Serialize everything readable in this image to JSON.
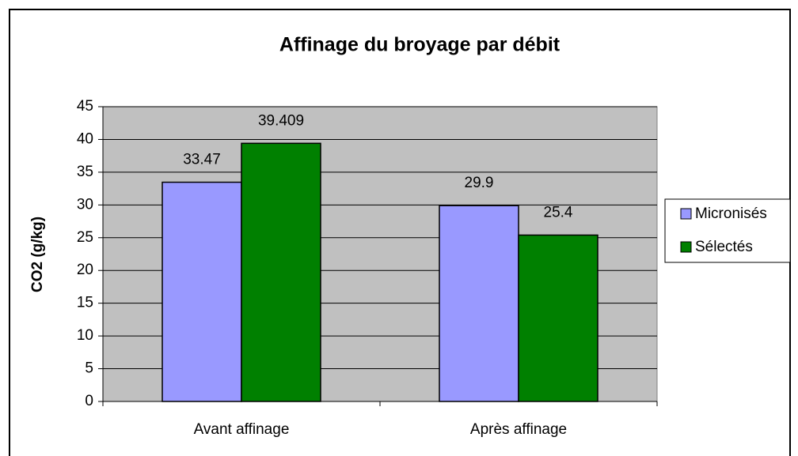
{
  "chart_data": {
    "type": "bar",
    "title": "Affinage du broyage par débit",
    "y_label": "CO2 (g/kg)",
    "categories": [
      "Avant affinage",
      "Après affinage"
    ],
    "series": [
      {
        "name": "Micronisés",
        "color": "#9999ff",
        "values": [
          33.47,
          29.9
        ]
      },
      {
        "name": "Sélectés",
        "color": "#008000",
        "values": [
          39.409,
          25.4
        ]
      }
    ],
    "ylim": [
      0,
      45
    ],
    "yticks": [
      0,
      5,
      10,
      15,
      20,
      25,
      30,
      35,
      40,
      45
    ],
    "grid": true,
    "legend": "right"
  }
}
